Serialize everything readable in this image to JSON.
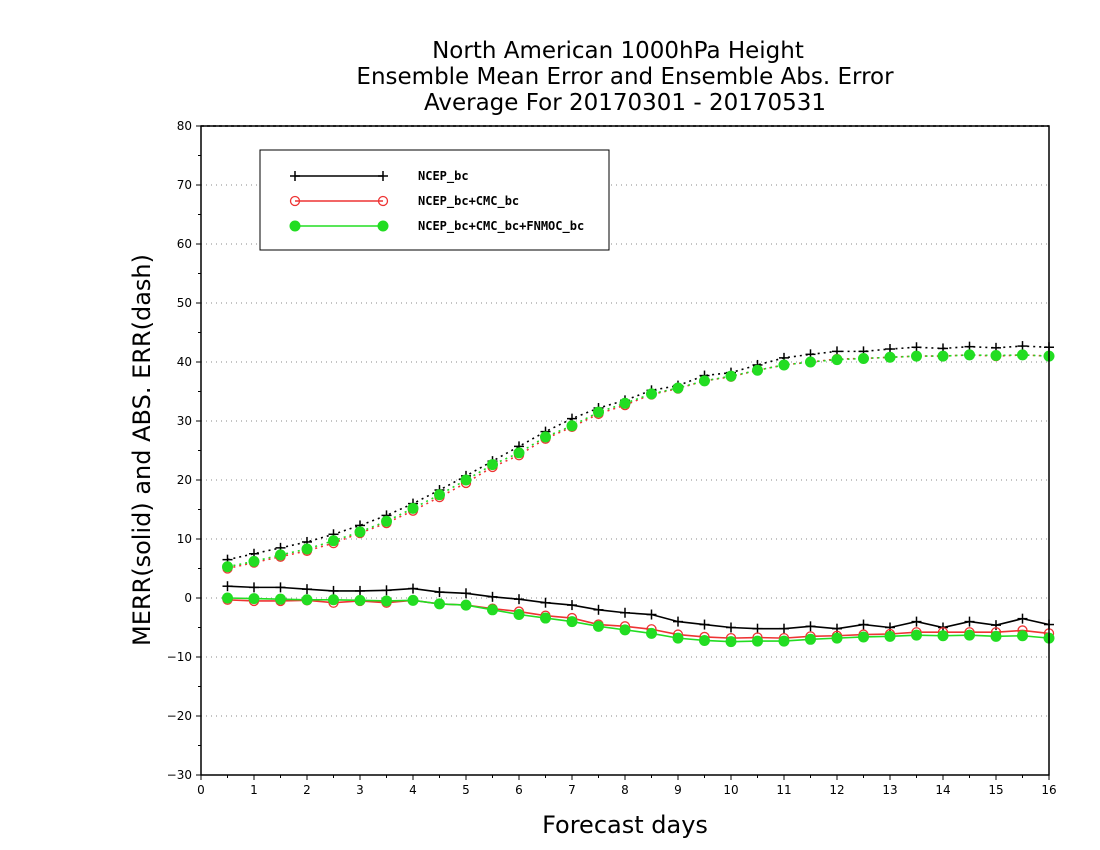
{
  "chart_data": {
    "type": "line",
    "title_lines": [
      "North American 1000hPa Height",
      "Ensemble Mean Error and Ensemble Abs. Error",
      "Average For 20170301 - 20170531"
    ],
    "xlabel": "Forecast days",
    "ylabel": "MERR(solid) and ABS. ERR(dash)",
    "xlim": [
      0,
      16
    ],
    "ylim": [
      -30,
      80
    ],
    "xticks": [
      0,
      1,
      2,
      3,
      4,
      5,
      6,
      7,
      8,
      9,
      10,
      11,
      12,
      13,
      14,
      15,
      16
    ],
    "yticks": [
      -30,
      -20,
      -10,
      0,
      10,
      20,
      30,
      40,
      50,
      60,
      70,
      80
    ],
    "grid": "horizontal-dotted",
    "legend_position": "top-left",
    "x": [
      0.5,
      1,
      1.5,
      2,
      2.5,
      3,
      3.5,
      4,
      4.5,
      5,
      5.5,
      6,
      6.5,
      7,
      7.5,
      8,
      8.5,
      9,
      9.5,
      10,
      10.5,
      11,
      11.5,
      12,
      12.5,
      13,
      13.5,
      14,
      14.5,
      15,
      15.5,
      16
    ],
    "series": [
      {
        "name": "NCEP_bc",
        "color": "#000000",
        "marker": "plus",
        "merr": [
          2.0,
          1.8,
          1.8,
          1.5,
          1.2,
          1.2,
          1.3,
          1.6,
          1.0,
          0.8,
          0.2,
          -0.2,
          -0.8,
          -1.2,
          -2.0,
          -2.5,
          -2.8,
          -4.0,
          -4.5,
          -5.0,
          -5.2,
          -5.2,
          -4.8,
          -5.2,
          -4.5,
          -5.0,
          -4.0,
          -5.0,
          -4.0,
          -4.6,
          -3.5,
          -4.5
        ],
        "abs_err": [
          6.5,
          7.5,
          8.5,
          9.5,
          10.8,
          12.3,
          14.0,
          16.0,
          18.3,
          20.7,
          23.2,
          25.7,
          28.2,
          30.4,
          32.2,
          33.5,
          35.2,
          36.0,
          37.7,
          38.2,
          39.5,
          40.7,
          41.3,
          41.8,
          41.8,
          42.2,
          42.5,
          42.3,
          42.6,
          42.4,
          42.7,
          42.5
        ]
      },
      {
        "name": "NCEP_bc+CMC_bc",
        "color": "#ee3333",
        "marker": "open-circle",
        "merr": [
          -0.3,
          -0.5,
          -0.5,
          -0.4,
          -0.8,
          -0.5,
          -0.8,
          -0.4,
          -1.0,
          -1.2,
          -1.8,
          -2.3,
          -3.0,
          -3.4,
          -4.5,
          -4.8,
          -5.3,
          -6.2,
          -6.6,
          -6.8,
          -6.7,
          -6.8,
          -6.5,
          -6.4,
          -6.2,
          -6.1,
          -5.8,
          -5.8,
          -5.8,
          -5.8,
          -5.5,
          -6.0
        ],
        "abs_err": [
          5.0,
          6.0,
          7.0,
          8.0,
          9.3,
          11.0,
          12.7,
          14.8,
          17.1,
          19.5,
          22.2,
          24.2,
          27.0,
          29.0,
          31.2,
          32.7,
          34.5,
          35.5,
          36.8,
          37.5,
          38.6,
          39.5,
          40.0,
          40.5,
          40.6,
          40.8,
          41.0,
          41.0,
          41.2,
          41.0,
          41.2,
          41.0
        ]
      },
      {
        "name": "NCEP_bc+CMC_bc+FNMOC_bc",
        "color": "#22dd22",
        "marker": "filled-circle",
        "merr": [
          0.0,
          -0.1,
          -0.2,
          -0.3,
          -0.3,
          -0.4,
          -0.5,
          -0.4,
          -1.0,
          -1.2,
          -2.0,
          -2.8,
          -3.4,
          -4.0,
          -4.8,
          -5.4,
          -6.0,
          -6.8,
          -7.2,
          -7.4,
          -7.3,
          -7.3,
          -7.0,
          -6.8,
          -6.6,
          -6.5,
          -6.3,
          -6.4,
          -6.3,
          -6.5,
          -6.4,
          -6.8
        ],
        "abs_err": [
          5.3,
          6.2,
          7.3,
          8.3,
          9.7,
          11.2,
          13.0,
          15.2,
          17.5,
          20.0,
          22.6,
          24.6,
          27.3,
          29.2,
          31.5,
          33.0,
          34.6,
          35.6,
          36.8,
          37.6,
          38.6,
          39.5,
          40.0,
          40.4,
          40.6,
          40.8,
          41.0,
          41.0,
          41.2,
          41.1,
          41.2,
          41.0
        ]
      }
    ]
  }
}
